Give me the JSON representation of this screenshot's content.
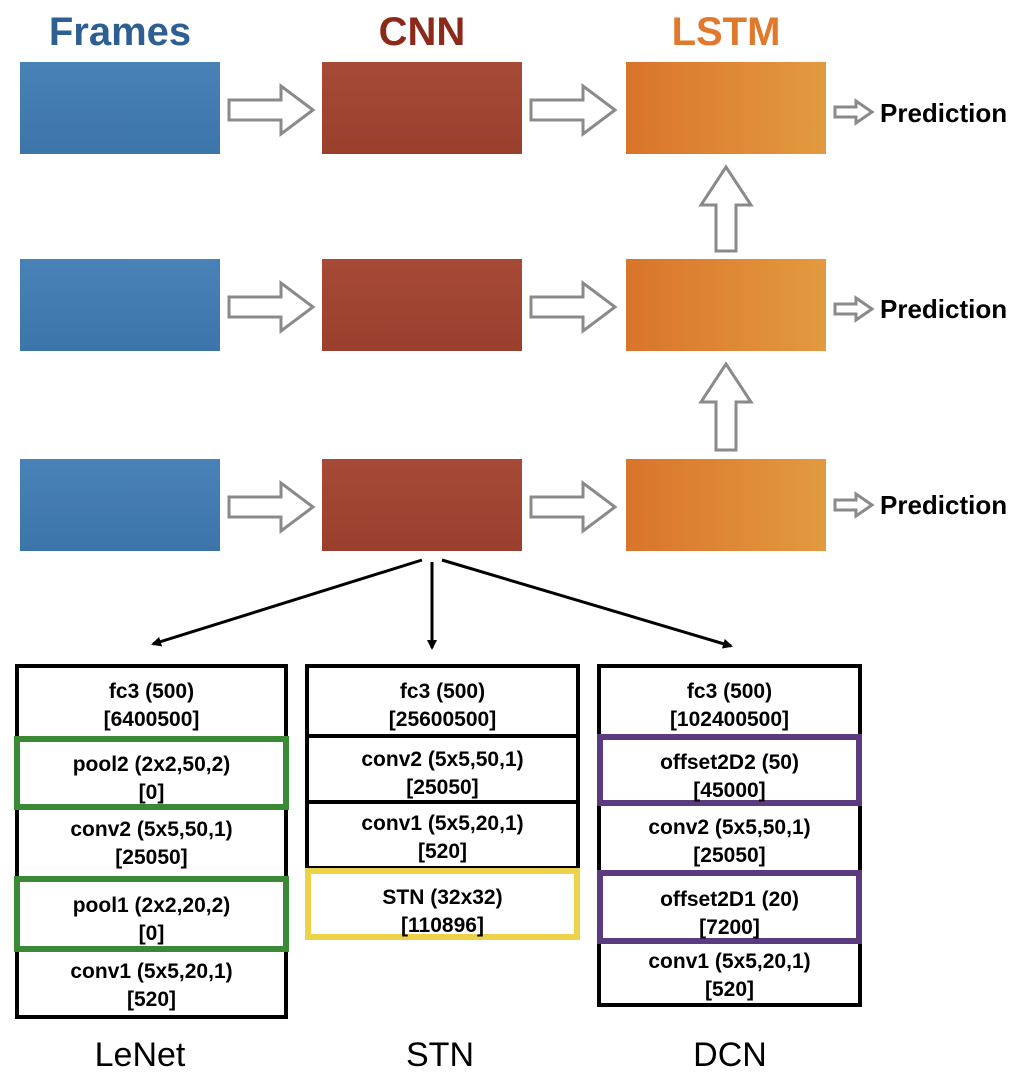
{
  "headers": {
    "frames": {
      "label": "Frames",
      "color": "#2e5f92"
    },
    "cnn": {
      "label": "CNN",
      "color": "#8b2a1b"
    },
    "lstm": {
      "label": "LSTM",
      "color": "#e0792b"
    }
  },
  "prediction_label": "Prediction",
  "stacks": {
    "lenet": {
      "caption": "LeNet",
      "layers": [
        {
          "name": "fc3 (500)",
          "params": "[6400500]",
          "highlight": "none"
        },
        {
          "name": "pool2 (2x2,50,2)",
          "params": "[0]",
          "highlight": "green"
        },
        {
          "name": "conv2 (5x5,50,1)",
          "params": "[25050]",
          "highlight": "none"
        },
        {
          "name": "pool1 (2x2,20,2)",
          "params": "[0]",
          "highlight": "green"
        },
        {
          "name": "conv1 (5x5,20,1)",
          "params": "[520]",
          "highlight": "none"
        }
      ]
    },
    "stn": {
      "caption": "STN",
      "layers": [
        {
          "name": "fc3 (500)",
          "params": "[25600500]",
          "highlight": "none"
        },
        {
          "name": "conv2 (5x5,50,1)",
          "params": "[25050]",
          "highlight": "none"
        },
        {
          "name": "conv1 (5x5,20,1)",
          "params": "[520]",
          "highlight": "none"
        },
        {
          "name": "STN (32x32)",
          "params": "[110896]",
          "highlight": "yellow"
        }
      ]
    },
    "dcn": {
      "caption": "DCN",
      "layers": [
        {
          "name": "fc3 (500)",
          "params": "[102400500]",
          "highlight": "none"
        },
        {
          "name": "offset2D2 (50)",
          "params": "[45000]",
          "highlight": "purple"
        },
        {
          "name": "conv2 (5x5,50,1)",
          "params": "[25050]",
          "highlight": "none"
        },
        {
          "name": "offset2D1 (20)",
          "params": "[7200]",
          "highlight": "purple"
        },
        {
          "name": "conv1 (5x5,20,1)",
          "params": "[520]",
          "highlight": "none"
        }
      ]
    }
  }
}
